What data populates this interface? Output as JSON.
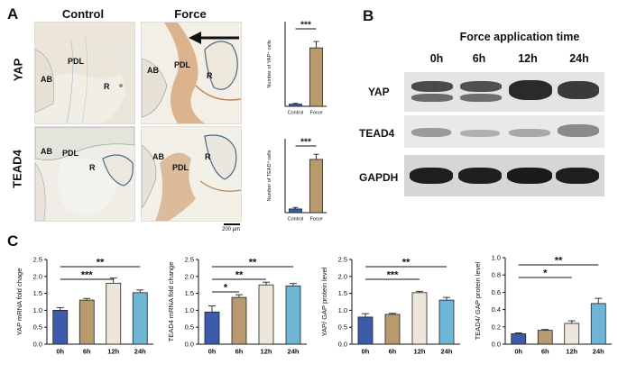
{
  "panel_letters": {
    "a": "A",
    "b": "B",
    "c": "C"
  },
  "panel_a": {
    "col_labels": {
      "control": "Control",
      "force": "Force"
    },
    "row_labels": {
      "yap": "YAP",
      "tead4": "TEAD4"
    },
    "tissue_labels": {
      "ab": "AB",
      "pdl": "PDL",
      "r": "R"
    },
    "scale_bar_label": "200 μm"
  },
  "panel_b": {
    "title": "Force application time",
    "timepoints": [
      "0h",
      "6h",
      "12h",
      "24h"
    ],
    "rows": [
      "YAP",
      "TEAD4",
      "GAPDH"
    ]
  },
  "colors": {
    "bar_0h": "#3b5bab",
    "bar_6h": "#b89a6e",
    "bar_12h": "#ece7da",
    "bar_24h": "#6fb6d6",
    "bar_control": "#3b5bab",
    "bar_force": "#b89a6e",
    "stain_brown": "#b9855a",
    "tissue_blue": "#4a6a86"
  },
  "chart_data": [
    {
      "id": "yap-cells",
      "type": "bar",
      "categories": [
        "Control",
        "Force"
      ],
      "values": [
        5,
        138
      ],
      "errors": [
        2,
        15
      ],
      "ylabel": "Number of YAP⁺ cells",
      "ylim": [
        0,
        200
      ],
      "significance": [
        {
          "from": 0,
          "to": 1,
          "label": "***"
        }
      ]
    },
    {
      "id": "tead4-cells",
      "type": "bar",
      "categories": [
        "Control",
        "Force"
      ],
      "values": [
        5,
        72
      ],
      "errors": [
        2,
        7
      ],
      "ylabel": "Number of TEAD⁴ cells",
      "ylim": [
        0,
        100
      ],
      "significance": [
        {
          "from": 0,
          "to": 1,
          "label": "***"
        }
      ]
    },
    {
      "id": "yap-mrna",
      "type": "bar",
      "categories": [
        "0h",
        "6h",
        "12h",
        "24h"
      ],
      "values": [
        1.0,
        1.3,
        1.8,
        1.52
      ],
      "errors": [
        0.08,
        0.05,
        0.15,
        0.08
      ],
      "ylabel": "YAP mRNA fold chage",
      "yticks": [
        0,
        0.5,
        1.0,
        1.5,
        2.0,
        2.5
      ],
      "ytick_labels": [
        "0.0",
        "0.5",
        "1.0",
        "1.5",
        "2.0",
        "2.5"
      ],
      "ylim": [
        0,
        2.5
      ],
      "significance": [
        {
          "from": 0,
          "to": 2,
          "label": "***"
        },
        {
          "from": 0,
          "to": 3,
          "label": "**"
        }
      ]
    },
    {
      "id": "tead4-mrna",
      "type": "bar",
      "categories": [
        "0h",
        "6h",
        "12h",
        "24h"
      ],
      "values": [
        0.95,
        1.38,
        1.75,
        1.72
      ],
      "errors": [
        0.18,
        0.08,
        0.08,
        0.07
      ],
      "ylabel": "TEAD4 mRNA fold change",
      "yticks": [
        0,
        0.5,
        1.0,
        1.5,
        2.0,
        2.5
      ],
      "ytick_labels": [
        "0.0",
        "0.5",
        "1.0",
        "1.5",
        "2.0",
        "2.5"
      ],
      "ylim": [
        0,
        2.5
      ],
      "significance": [
        {
          "from": 0,
          "to": 1,
          "label": "*"
        },
        {
          "from": 0,
          "to": 2,
          "label": "**"
        },
        {
          "from": 0,
          "to": 3,
          "label": "**"
        }
      ]
    },
    {
      "id": "yap-protein",
      "type": "bar",
      "categories": [
        "0h",
        "6h",
        "12h",
        "24h"
      ],
      "values": [
        0.8,
        0.88,
        1.52,
        1.3
      ],
      "errors": [
        0.1,
        0.03,
        0.04,
        0.08
      ],
      "ylabel": "YAP/ GAP protein level",
      "yticks": [
        0,
        0.5,
        1.0,
        1.5,
        2.0,
        2.5
      ],
      "ytick_labels": [
        "0.0",
        "0.5",
        "1.0",
        "1.5",
        "2.0",
        "2.5"
      ],
      "ylim": [
        0,
        2.5
      ],
      "significance": [
        {
          "from": 0,
          "to": 2,
          "label": "***"
        },
        {
          "from": 0,
          "to": 3,
          "label": "**"
        }
      ]
    },
    {
      "id": "tead4-protein",
      "type": "bar",
      "categories": [
        "0h",
        "6h",
        "12h",
        "24h"
      ],
      "values": [
        0.12,
        0.16,
        0.24,
        0.47
      ],
      "errors": [
        0.01,
        0.01,
        0.03,
        0.06
      ],
      "ylabel": "TEAD4/ GAP protein level",
      "yticks": [
        0,
        0.2,
        0.4,
        0.6,
        0.8,
        1.0
      ],
      "ytick_labels": [
        "0.0",
        "0.2",
        "0.4",
        "0.6",
        "0.8",
        "1.0"
      ],
      "ylim": [
        0,
        1.0
      ],
      "significance": [
        {
          "from": 0,
          "to": 2,
          "label": "*"
        },
        {
          "from": 0,
          "to": 3,
          "label": "**"
        }
      ]
    }
  ]
}
